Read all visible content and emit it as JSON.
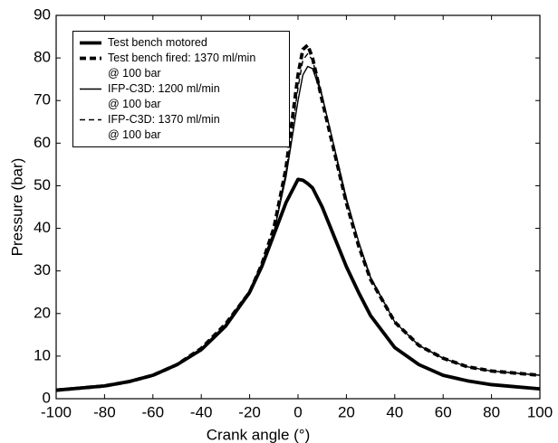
{
  "chart_data": {
    "type": "line",
    "x_label": "Crank angle (°)",
    "y_label": "Pressure (bar)",
    "x": [
      -100,
      -90,
      -80,
      -70,
      -60,
      -50,
      -40,
      -30,
      -20,
      -15,
      -10,
      -5,
      0,
      2,
      4,
      6,
      10,
      15,
      20,
      25,
      30,
      40,
      50,
      60,
      70,
      80,
      90,
      100
    ],
    "series": [
      {
        "name": "Test bench motored",
        "color": "#000000",
        "width": "thick",
        "style": "solid",
        "values": [
          2,
          2.5,
          3,
          4,
          5.5,
          8,
          11.5,
          17,
          25,
          31,
          38.5,
          46,
          51.5,
          51.3,
          50.5,
          49.5,
          45,
          38,
          31,
          25,
          19.5,
          12,
          8,
          5.5,
          4.2,
          3.3,
          2.8,
          2.3
        ]
      },
      {
        "name": "Test bench fired: 1370 ml/min\n@ 100 bar",
        "color": "#000000",
        "width": "thick",
        "style": "dashed",
        "values": [
          2,
          2.5,
          3,
          4,
          5.5,
          8,
          11.8,
          17.5,
          25,
          31.5,
          40,
          54,
          76,
          82,
          83,
          80,
          70,
          58,
          46,
          36,
          28,
          18,
          12.5,
          9.5,
          7.5,
          6.5,
          6,
          5.5
        ]
      },
      {
        "name": "IFP-C3D: 1200 ml/min\n@ 100 bar",
        "color": "#000000",
        "width": "thin",
        "style": "solid",
        "values": [
          2,
          2.5,
          3,
          4,
          5.5,
          8,
          11.6,
          17.2,
          24.5,
          31,
          39,
          52,
          70,
          76,
          78,
          77.5,
          71,
          59,
          47,
          37,
          28.5,
          18,
          12.5,
          9.5,
          7.5,
          6.5,
          6,
          5.5
        ]
      },
      {
        "name": "IFP-C3D: 1370 ml/min\n@ 100 bar",
        "color": "#000000",
        "width": "thin",
        "style": "dashed",
        "values": [
          2,
          2.5,
          3,
          4,
          5.5,
          8,
          11.7,
          17.3,
          24.8,
          31.3,
          39.5,
          53,
          73,
          79.5,
          81,
          79.5,
          71,
          58.5,
          46.5,
          36.5,
          28.3,
          18,
          12.5,
          9.5,
          7.5,
          6.5,
          6,
          5.5
        ]
      }
    ],
    "xlim": [
      -100,
      100
    ],
    "ylim": [
      0,
      90
    ],
    "xticks": [
      -100,
      -80,
      -60,
      -40,
      -20,
      0,
      20,
      40,
      60,
      80,
      100
    ],
    "yticks": [
      0,
      10,
      20,
      30,
      40,
      50,
      60,
      70,
      80,
      90
    ],
    "legend": "upper-left"
  }
}
